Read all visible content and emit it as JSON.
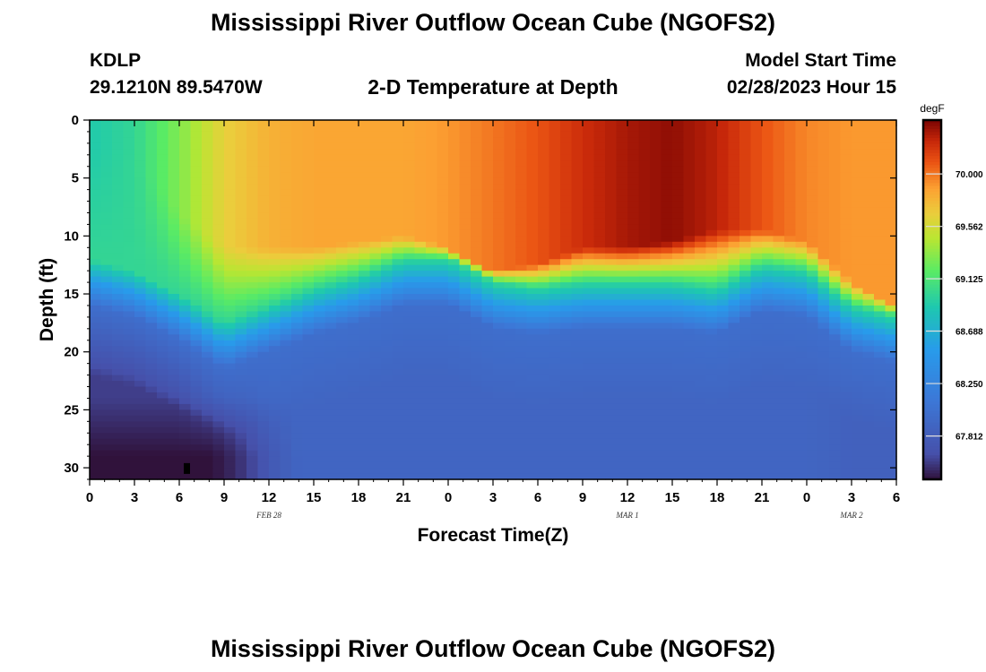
{
  "header": {
    "title": "Mississippi River Outflow Ocean Cube (NGOFS2)",
    "station": "KDLP",
    "coords": "29.1210N  89.5470W",
    "subtitle": "2-D Temperature at Depth",
    "model_label": "Model Start Time",
    "model_time": "02/28/2023 Hour 15"
  },
  "footer": {
    "title": "Mississippi River Outflow Ocean Cube (NGOFS2)"
  },
  "chart_data": {
    "type": "heatmap",
    "title": "2-D Temperature at Depth",
    "xlabel": "Forecast Time(Z)",
    "ylabel": "Depth (ft)",
    "x_range": [
      0,
      54
    ],
    "y_range": [
      0,
      31
    ],
    "x_ticks": [
      0,
      3,
      6,
      9,
      12,
      15,
      18,
      21,
      24,
      27,
      30,
      33,
      36,
      39,
      42,
      45,
      48,
      51,
      54
    ],
    "x_tick_labels": [
      "0",
      "3",
      "6",
      "9",
      "12",
      "15",
      "18",
      "21",
      "0",
      "3",
      "6",
      "9",
      "12",
      "15",
      "18",
      "21",
      "0",
      "3",
      "6"
    ],
    "y_ticks": [
      0,
      5,
      10,
      15,
      20,
      25,
      30
    ],
    "y_tick_labels": [
      "0",
      "5",
      "10",
      "15",
      "20",
      "25",
      "30"
    ],
    "date_labels": [
      {
        "x": 12,
        "label": "FEB 28"
      },
      {
        "x": 36,
        "label": "MAR 1"
      },
      {
        "x": 51,
        "label": "MAR 2"
      }
    ],
    "colorbar": {
      "units": "degF",
      "min": 67.45,
      "max": 70.45,
      "ticks": [
        70.0,
        69.562,
        69.125,
        68.688,
        68.25,
        67.812
      ],
      "tick_labels": [
        "70.000",
        "69.562",
        "69.125",
        "68.688",
        "68.250",
        "67.812"
      ]
    },
    "series": [
      {
        "name": "thermocline_depth_ft",
        "x": [
          0,
          3,
          6,
          9,
          12,
          15,
          18,
          21,
          24,
          27,
          30,
          33,
          36,
          39,
          42,
          45,
          48,
          51,
          54
        ],
        "values": [
          13,
          14,
          16,
          18.5,
          17,
          15.5,
          14.5,
          13,
          13,
          15,
          15.5,
          15,
          15,
          15,
          15.5,
          13.5,
          14,
          17,
          18
        ]
      },
      {
        "name": "warm_layer_bottom_ft",
        "x": [
          0,
          3,
          6,
          9,
          12,
          15,
          18,
          21,
          24,
          27,
          30,
          33,
          36,
          39,
          42,
          45,
          48,
          51,
          54
        ],
        "values": [
          2,
          3,
          8,
          11,
          11,
          11,
          10.5,
          10,
          11,
          13,
          12.5,
          11,
          11,
          10.5,
          9.5,
          9.5,
          10.5,
          14,
          16
        ]
      }
    ],
    "surface_values_degF": [
      68.9,
      69.0,
      69.3,
      69.65,
      69.8,
      69.85,
      69.85,
      69.85,
      69.9,
      70.0,
      70.1,
      70.25,
      70.35,
      70.4,
      70.3,
      70.1,
      69.95,
      69.9,
      69.9
    ],
    "bottom_values_degF": [
      67.45,
      67.45,
      67.45,
      67.55,
      67.75,
      67.75,
      67.75,
      67.75,
      67.75,
      67.75,
      67.75,
      67.75,
      67.75,
      67.75,
      67.75,
      67.75,
      67.75,
      67.7,
      67.7
    ]
  }
}
